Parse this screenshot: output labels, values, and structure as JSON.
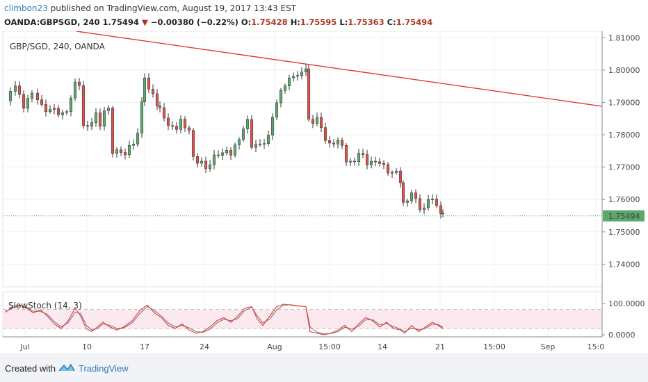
{
  "header": {
    "user": "climbon23",
    "published": "published on TradingView.com, August 19, 2017 13:43 EST",
    "symbol": "OANDA:GBPSGD, 240",
    "last": "1.75494",
    "change": "−0.00380 (−0.22%)",
    "open_label": "O:",
    "open": "1.75428",
    "high_label": "H:",
    "high": "1.75595",
    "low_label": "L:",
    "low": "1.75363",
    "close_label": "C:",
    "close": "1.75494"
  },
  "chart_data": {
    "type": "candlestick",
    "title": "GBP/SGD, 240, OANDA",
    "ylim": [
      1.733,
      1.812
    ],
    "y_ticks": [
      "1.81000",
      "1.80000",
      "1.79000",
      "1.78000",
      "1.77000",
      "1.76000",
      "1.75000",
      "1.74000"
    ],
    "x_ticks": [
      "Jul",
      "10",
      "17",
      "24",
      "Aug",
      "15:00",
      "14",
      "21",
      "15:00",
      "Sep",
      "15:0"
    ],
    "last_price_label": "1.75494",
    "last_price": 1.75494,
    "colors": {
      "up": "#5aa86b",
      "down": "#d9534f",
      "trendline": "#e53935",
      "stoch_k": "#e53935",
      "stoch_d": "#777777",
      "band": "#fce8ef"
    },
    "close_path": [
      [
        0,
        1.7905
      ],
      [
        7,
        1.794
      ],
      [
        14,
        1.796
      ],
      [
        20,
        1.792
      ],
      [
        26,
        1.788
      ],
      [
        32,
        1.792
      ],
      [
        38,
        1.792
      ],
      [
        46,
        1.7905
      ],
      [
        52,
        1.789
      ],
      [
        58,
        1.788
      ],
      [
        64,
        1.787
      ],
      [
        70,
        1.7885
      ],
      [
        76,
        1.7865
      ],
      [
        82,
        1.786
      ],
      [
        88,
        1.788
      ],
      [
        94,
        1.791
      ],
      [
        100,
        1.796
      ],
      [
        106,
        1.796
      ],
      [
        112,
        1.782
      ],
      [
        118,
        1.783
      ],
      [
        124,
        1.784
      ],
      [
        130,
        1.786
      ],
      [
        136,
        1.7835
      ],
      [
        142,
        1.787
      ],
      [
        148,
        1.788
      ],
      [
        154,
        1.775
      ],
      [
        160,
        1.7745
      ],
      [
        166,
        1.775
      ],
      [
        172,
        1.774
      ],
      [
        178,
        1.776
      ],
      [
        184,
        1.778
      ],
      [
        190,
        1.78
      ],
      [
        196,
        1.79
      ],
      [
        200,
        1.797
      ],
      [
        206,
        1.795
      ],
      [
        212,
        1.792
      ],
      [
        218,
        1.789
      ],
      [
        222,
        1.788
      ],
      [
        228,
        1.786
      ],
      [
        234,
        1.782
      ],
      [
        240,
        1.783
      ],
      [
        246,
        1.782
      ],
      [
        252,
        1.784
      ],
      [
        258,
        1.783
      ],
      [
        264,
        1.781
      ],
      [
        270,
        1.773
      ],
      [
        276,
        1.772
      ],
      [
        282,
        1.771
      ],
      [
        288,
        1.77
      ],
      [
        294,
        1.771
      ],
      [
        300,
        1.773
      ],
      [
        306,
        1.7745
      ],
      [
        312,
        1.774
      ],
      [
        318,
        1.775
      ],
      [
        324,
        1.7745
      ],
      [
        330,
        1.776
      ],
      [
        336,
        1.779
      ],
      [
        342,
        1.782
      ],
      [
        348,
        1.784
      ],
      [
        354,
        1.777
      ],
      [
        360,
        1.7765
      ],
      [
        366,
        1.777
      ],
      [
        372,
        1.778
      ],
      [
        378,
        1.779
      ],
      [
        384,
        1.786
      ],
      [
        390,
        1.79
      ],
      [
        396,
        1.793
      ],
      [
        402,
        1.796
      ],
      [
        408,
        1.797
      ],
      [
        414,
        1.798
      ],
      [
        420,
        1.799
      ],
      [
        426,
        1.7985
      ],
      [
        432,
        1.801
      ],
      [
        436,
        1.785
      ],
      [
        442,
        1.784
      ],
      [
        448,
        1.7845
      ],
      [
        454,
        1.783
      ],
      [
        460,
        1.778
      ],
      [
        466,
        1.777
      ],
      [
        472,
        1.778
      ],
      [
        478,
        1.7775
      ],
      [
        484,
        1.777
      ],
      [
        490,
        1.772
      ],
      [
        496,
        1.771
      ],
      [
        502,
        1.7725
      ],
      [
        508,
        1.774
      ],
      [
        514,
        1.7735
      ],
      [
        520,
        1.7715
      ],
      [
        526,
        1.771
      ],
      [
        532,
        1.772
      ],
      [
        538,
        1.7715
      ],
      [
        544,
        1.77
      ],
      [
        550,
        1.769
      ],
      [
        556,
        1.768
      ],
      [
        562,
        1.7685
      ],
      [
        568,
        1.766
      ],
      [
        572,
        1.76
      ],
      [
        578,
        1.759
      ],
      [
        584,
        1.762
      ],
      [
        590,
        1.761
      ],
      [
        596,
        1.756
      ],
      [
        602,
        1.758
      ],
      [
        608,
        1.76
      ],
      [
        614,
        1.7595
      ],
      [
        620,
        1.759
      ],
      [
        626,
        1.755
      ],
      [
        629,
        1.75494
      ]
    ],
    "trendline": {
      "start": [
        110,
        1.812
      ],
      "end": [
        866,
        1.7888
      ]
    },
    "indicator": {
      "label": "SlowStoch (14, 3)",
      "ylim": [
        0,
        100
      ],
      "y_ticks": [
        "100.0000",
        "0.0000"
      ],
      "bands": [
        80,
        20
      ],
      "k": [
        [
          0,
          72
        ],
        [
          10,
          90
        ],
        [
          20,
          95
        ],
        [
          30,
          85
        ],
        [
          40,
          70
        ],
        [
          50,
          80
        ],
        [
          60,
          60
        ],
        [
          70,
          35
        ],
        [
          80,
          20
        ],
        [
          90,
          45
        ],
        [
          100,
          85
        ],
        [
          108,
          60
        ],
        [
          116,
          20
        ],
        [
          124,
          10
        ],
        [
          132,
          25
        ],
        [
          140,
          40
        ],
        [
          150,
          25
        ],
        [
          160,
          15
        ],
        [
          170,
          25
        ],
        [
          182,
          45
        ],
        [
          194,
          80
        ],
        [
          204,
          95
        ],
        [
          214,
          70
        ],
        [
          224,
          55
        ],
        [
          234,
          30
        ],
        [
          244,
          20
        ],
        [
          254,
          35
        ],
        [
          264,
          15
        ],
        [
          274,
          5
        ],
        [
          284,
          10
        ],
        [
          294,
          25
        ],
        [
          304,
          45
        ],
        [
          314,
          55
        ],
        [
          324,
          40
        ],
        [
          334,
          60
        ],
        [
          344,
          85
        ],
        [
          354,
          90
        ],
        [
          362,
          50
        ],
        [
          370,
          30
        ],
        [
          380,
          60
        ],
        [
          390,
          90
        ],
        [
          400,
          98
        ],
        [
          410,
          95
        ],
        [
          420,
          92
        ],
        [
          432,
          90
        ],
        [
          438,
          10
        ],
        [
          448,
          5
        ],
        [
          458,
          0
        ],
        [
          468,
          5
        ],
        [
          478,
          15
        ],
        [
          488,
          30
        ],
        [
          498,
          10
        ],
        [
          508,
          35
        ],
        [
          518,
          55
        ],
        [
          528,
          45
        ],
        [
          538,
          25
        ],
        [
          548,
          40
        ],
        [
          558,
          20
        ],
        [
          568,
          15
        ],
        [
          574,
          5
        ],
        [
          584,
          30
        ],
        [
          594,
          10
        ],
        [
          604,
          25
        ],
        [
          614,
          40
        ],
        [
          622,
          30
        ],
        [
          629,
          20
        ]
      ],
      "d": [
        [
          0,
          75
        ],
        [
          10,
          85
        ],
        [
          20,
          93
        ],
        [
          30,
          88
        ],
        [
          40,
          75
        ],
        [
          50,
          75
        ],
        [
          60,
          65
        ],
        [
          70,
          42
        ],
        [
          80,
          25
        ],
        [
          90,
          38
        ],
        [
          100,
          72
        ],
        [
          108,
          68
        ],
        [
          116,
          30
        ],
        [
          124,
          15
        ],
        [
          132,
          20
        ],
        [
          140,
          35
        ],
        [
          150,
          30
        ],
        [
          160,
          20
        ],
        [
          170,
          22
        ],
        [
          182,
          38
        ],
        [
          194,
          70
        ],
        [
          204,
          90
        ],
        [
          214,
          78
        ],
        [
          224,
          60
        ],
        [
          234,
          38
        ],
        [
          244,
          25
        ],
        [
          254,
          30
        ],
        [
          264,
          22
        ],
        [
          274,
          10
        ],
        [
          284,
          8
        ],
        [
          294,
          18
        ],
        [
          304,
          38
        ],
        [
          314,
          50
        ],
        [
          324,
          45
        ],
        [
          334,
          52
        ],
        [
          344,
          78
        ],
        [
          354,
          88
        ],
        [
          362,
          60
        ],
        [
          370,
          38
        ],
        [
          380,
          50
        ],
        [
          390,
          80
        ],
        [
          400,
          95
        ],
        [
          410,
          96
        ],
        [
          420,
          93
        ],
        [
          432,
          90
        ],
        [
          438,
          25
        ],
        [
          448,
          8
        ],
        [
          458,
          3
        ],
        [
          468,
          4
        ],
        [
          478,
          10
        ],
        [
          488,
          24
        ],
        [
          498,
          18
        ],
        [
          508,
          28
        ],
        [
          518,
          48
        ],
        [
          528,
          48
        ],
        [
          538,
          32
        ],
        [
          548,
          36
        ],
        [
          558,
          26
        ],
        [
          568,
          18
        ],
        [
          574,
          10
        ],
        [
          584,
          22
        ],
        [
          594,
          16
        ],
        [
          604,
          20
        ],
        [
          614,
          34
        ],
        [
          622,
          33
        ],
        [
          629,
          24
        ]
      ]
    }
  },
  "footer": {
    "created_with": "Created with",
    "brand": "TradingView"
  }
}
